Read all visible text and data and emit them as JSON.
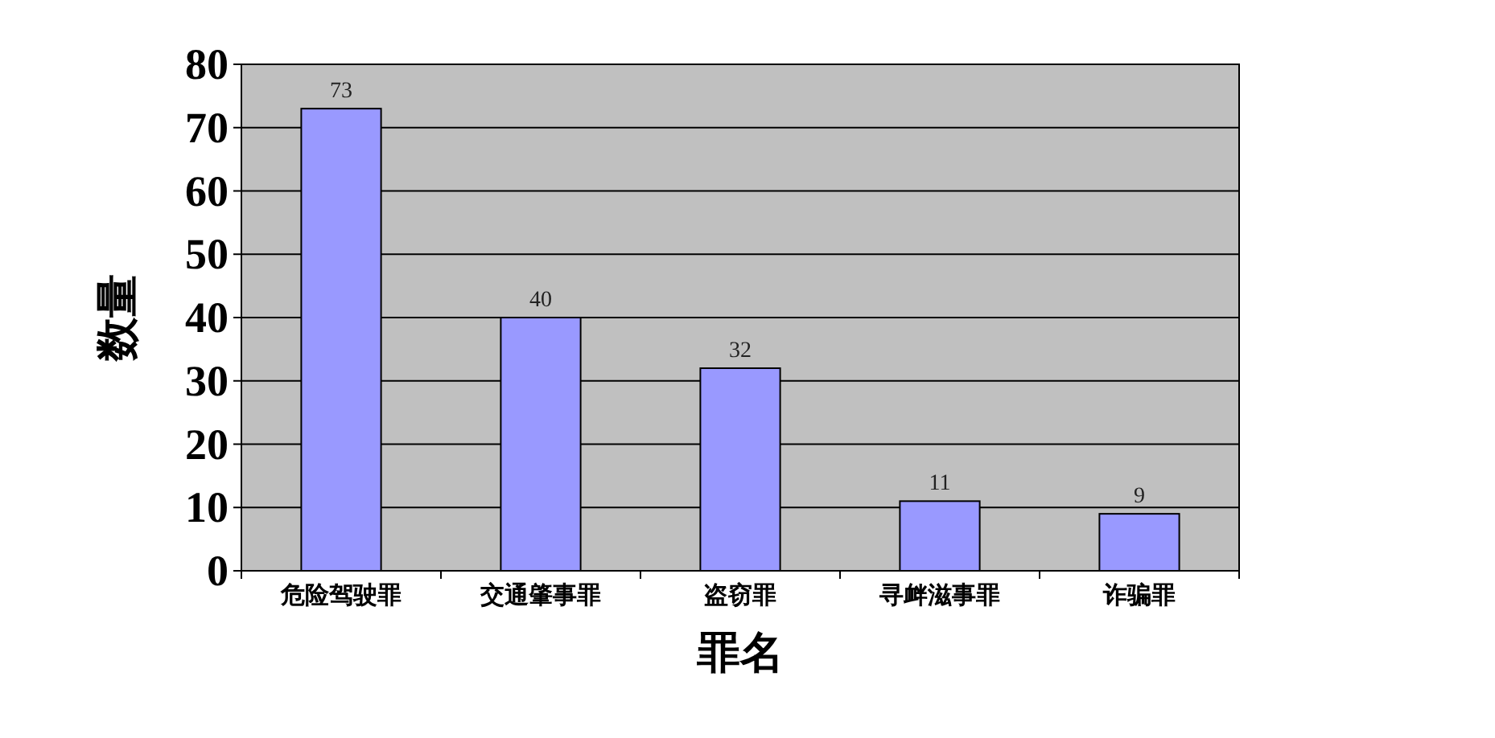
{
  "chart_data": {
    "type": "bar",
    "xlabel": "罪名",
    "ylabel": "数量",
    "categories": [
      "危险驾驶罪",
      "交通肇事罪",
      "盗窃罪",
      "寻衅滋事罪",
      "诈骗罪"
    ],
    "values": [
      73,
      40,
      32,
      11,
      9
    ],
    "color": "#9999ff",
    "ylim": [
      0,
      80
    ],
    "yticks": [
      0,
      10,
      20,
      30,
      40,
      50,
      60,
      70,
      80
    ],
    "grid": "y",
    "data_labels": true
  }
}
